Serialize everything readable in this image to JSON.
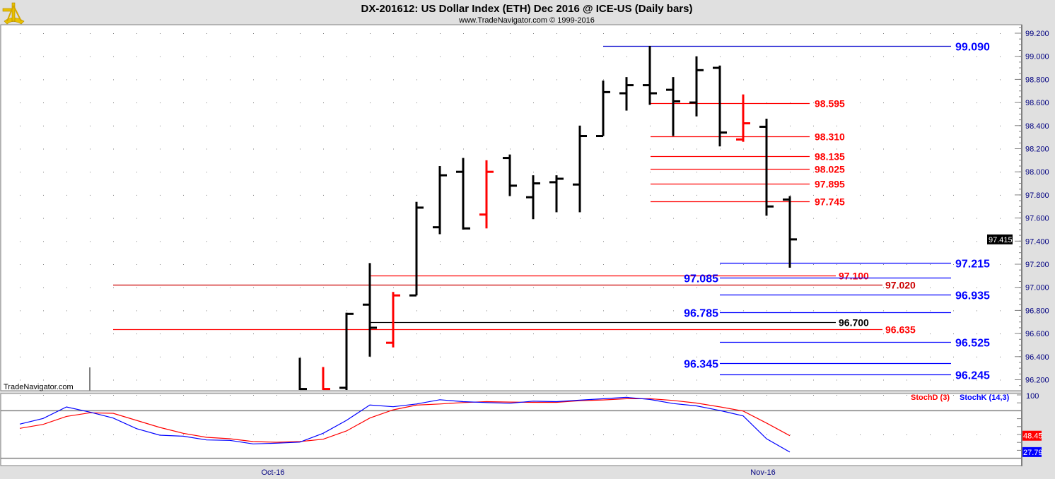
{
  "header": {
    "title": "DX-201612:  US Dollar Index (ETH) Dec 2016 @ ICE-US  (Daily bars)",
    "subtitle": "www.TradeNavigator.com © 1999-2016",
    "logo_icon": "sextant-icon"
  },
  "watermark": "TradeNavigator.com",
  "colors": {
    "up": "#000000",
    "down": "#ff0000",
    "blue": "#0000ff",
    "red": "#ff0000",
    "darkred": "#cc0000",
    "background": "#ffffff",
    "frame": "#e0e0e0"
  },
  "chart_data": [
    {
      "type": "ohlc",
      "title": "DX-201612:  US Dollar Index (ETH) Dec 2016 @ ICE-US  (Daily bars)",
      "yaxis": {
        "ticks": [
          "99.200",
          "99.000",
          "98.800",
          "98.600",
          "98.400",
          "98.200",
          "98.000",
          "97.800",
          "97.600",
          "97.400",
          "97.200",
          "97.000",
          "96.800",
          "96.600",
          "96.400",
          "96.200"
        ],
        "range": [
          96.1,
          99.3
        ],
        "position": "right"
      },
      "xaxis": {
        "labels": [
          {
            "label": "Oct-16",
            "index": 11
          },
          {
            "label": "Nov-16",
            "index": 32
          }
        ]
      },
      "grid": "dotted",
      "last_price": "97.415",
      "bars": [
        {
          "i": 12,
          "o": 96.1,
          "h": 96.39,
          "l": 96.08,
          "c": 96.12,
          "color": "black"
        },
        {
          "i": 13,
          "o": 96.1,
          "h": 96.31,
          "l": 96.08,
          "c": 96.12,
          "color": "red"
        },
        {
          "i": 14,
          "o": 96.13,
          "h": 96.78,
          "l": 96.08,
          "c": 96.77,
          "color": "black"
        },
        {
          "i": 15,
          "o": 96.85,
          "h": 97.21,
          "l": 96.4,
          "c": 96.65,
          "color": "black"
        },
        {
          "i": 16,
          "o": 96.52,
          "h": 96.96,
          "l": 96.48,
          "c": 96.93,
          "color": "red"
        },
        {
          "i": 17,
          "o": 96.93,
          "h": 97.74,
          "l": 96.93,
          "c": 97.69,
          "color": "black"
        },
        {
          "i": 18,
          "o": 97.52,
          "h": 98.05,
          "l": 97.46,
          "c": 97.97,
          "color": "black"
        },
        {
          "i": 19,
          "o": 98.0,
          "h": 98.12,
          "l": 97.5,
          "c": 97.51,
          "color": "black"
        },
        {
          "i": 20,
          "o": 97.63,
          "h": 98.1,
          "l": 97.51,
          "c": 98.0,
          "color": "red"
        },
        {
          "i": 21,
          "o": 98.12,
          "h": 98.15,
          "l": 97.79,
          "c": 97.88,
          "color": "black"
        },
        {
          "i": 22,
          "o": 97.78,
          "h": 97.97,
          "l": 97.59,
          "c": 97.9,
          "color": "black"
        },
        {
          "i": 23,
          "o": 97.91,
          "h": 97.97,
          "l": 97.65,
          "c": 97.94,
          "color": "black"
        },
        {
          "i": 24,
          "o": 97.89,
          "h": 98.4,
          "l": 97.65,
          "c": 98.31,
          "color": "black"
        },
        {
          "i": 25,
          "o": 98.31,
          "h": 98.79,
          "l": 98.31,
          "c": 98.69,
          "color": "black"
        },
        {
          "i": 26,
          "o": 98.68,
          "h": 98.82,
          "l": 98.53,
          "c": 98.75,
          "color": "black"
        },
        {
          "i": 27,
          "o": 98.75,
          "h": 99.09,
          "l": 98.58,
          "c": 98.68,
          "color": "black"
        },
        {
          "i": 28,
          "o": 98.71,
          "h": 98.82,
          "l": 98.31,
          "c": 98.61,
          "color": "black"
        },
        {
          "i": 29,
          "o": 98.6,
          "h": 99.0,
          "l": 98.48,
          "c": 98.88,
          "color": "black"
        },
        {
          "i": 30,
          "o": 98.9,
          "h": 98.92,
          "l": 98.22,
          "c": 98.34,
          "color": "black"
        },
        {
          "i": 31,
          "o": 98.28,
          "h": 98.67,
          "l": 98.26,
          "c": 98.42,
          "color": "red"
        },
        {
          "i": 32,
          "o": 98.39,
          "h": 98.46,
          "l": 97.62,
          "c": 97.7,
          "color": "black"
        },
        {
          "i": 33,
          "o": 97.76,
          "h": 97.79,
          "l": 97.17,
          "c": 97.415,
          "color": "black"
        }
      ],
      "levels": [
        {
          "label": "99.090",
          "value": 99.09,
          "color": "#0000cc",
          "text_color": "#0000ff"
        },
        {
          "label": "98.595",
          "value": 98.595,
          "color": "#ff0000",
          "text_color": "#ff0000"
        },
        {
          "label": "98.310",
          "value": 98.31,
          "color": "#ff0000",
          "text_color": "#ff0000"
        },
        {
          "label": "98.135",
          "value": 98.135,
          "color": "#ff0000",
          "text_color": "#ff0000"
        },
        {
          "label": "98.025",
          "value": 98.025,
          "color": "#ff0000",
          "text_color": "#ff0000"
        },
        {
          "label": "97.895",
          "value": 97.895,
          "color": "#ff0000",
          "text_color": "#ff0000"
        },
        {
          "label": "97.745",
          "value": 97.745,
          "color": "#ff0000",
          "text_color": "#ff0000"
        },
        {
          "label": "97.215",
          "value": 97.215,
          "color": "#0000ff",
          "text_color": "#0000ff"
        },
        {
          "label": "97.100",
          "value": 97.1,
          "color": "#ff0000",
          "text_color": "#ff0000"
        },
        {
          "label": "97.085",
          "value": 97.085,
          "color": "#0000ff",
          "text_color": "#0000ff"
        },
        {
          "label": "97.020",
          "value": 97.02,
          "color": "#cc0000",
          "text_color": "#cc0000"
        },
        {
          "label": "96.935",
          "value": 96.935,
          "color": "#0000ff",
          "text_color": "#0000ff"
        },
        {
          "label": "96.785",
          "value": 96.785,
          "color": "#0000ff",
          "text_color": "#0000ff"
        },
        {
          "label": "96.700",
          "value": 96.7,
          "color": "#000000",
          "text_color": "#000000"
        },
        {
          "label": "96.635",
          "value": 96.635,
          "color": "#ff0000",
          "text_color": "#ff0000"
        },
        {
          "label": "96.525",
          "value": 96.525,
          "color": "#0000ff",
          "text_color": "#0000ff"
        },
        {
          "label": "96.345",
          "value": 96.345,
          "color": "#0000ff",
          "text_color": "#0000ff"
        },
        {
          "label": "96.245",
          "value": 96.245,
          "color": "#0000ff",
          "text_color": "#0000ff"
        }
      ]
    },
    {
      "type": "line",
      "yaxis": {
        "ticks": [
          "100"
        ],
        "range": [
          0,
          100
        ],
        "reference_lines": [
          80,
          20
        ]
      },
      "series": [
        {
          "name": "StochD (3)",
          "color": "#ff0000",
          "last": "48.45",
          "values": [
            57.8,
            62.8,
            72.9,
            77.4,
            76.8,
            67.9,
            58.9,
            51.5,
            46.4,
            44.6,
            41.1,
            40.2,
            41.1,
            44.0,
            54.5,
            70.8,
            81.2,
            87.1,
            88.6,
            90.4,
            91.5,
            91.0,
            90.6,
            90.6,
            92.8,
            93.7,
            95.2,
            95.2,
            93.0,
            89.7,
            84.9,
            79.6,
            64.5,
            48.45
          ]
        },
        {
          "name": "StochK (14,3)",
          "color": "#0000ff",
          "last": "27.79",
          "values": [
            63.1,
            70.3,
            84.8,
            78.3,
            70.8,
            57.4,
            49.1,
            47.9,
            43.1,
            42.6,
            38.1,
            39.0,
            40.4,
            51.5,
            67.9,
            87.2,
            85.1,
            88.6,
            93.9,
            91.5,
            90.4,
            89.5,
            92.1,
            91.5,
            93.4,
            95.2,
            97.0,
            94.3,
            89.1,
            86.2,
            80.4,
            73.5,
            44.6,
            27.79
          ]
        }
      ]
    }
  ]
}
